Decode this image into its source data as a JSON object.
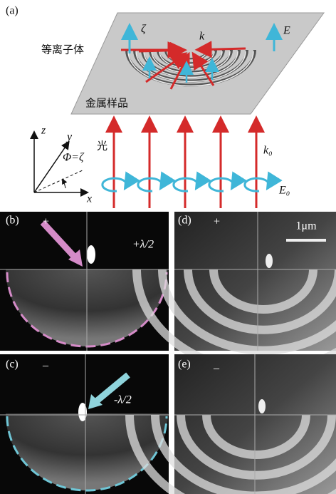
{
  "panels": {
    "a": {
      "label": "(a)",
      "plasma_label": "等离子体",
      "sample_label": "金属样品",
      "zeta": "ζ",
      "k": "k",
      "E": "E",
      "light": "光",
      "k0": "k₀",
      "E0": "E₀",
      "axes": {
        "z": "z",
        "y": "y",
        "x": "x",
        "phi": "Φ=ζ"
      }
    },
    "b": {
      "label": "(b)",
      "sign": "+",
      "phase": "+λ/2"
    },
    "c": {
      "label": "(c)",
      "sign": "–",
      "phase": "-λ/2"
    },
    "d": {
      "label": "(d)",
      "sign": "+",
      "scale_bar": "1μm"
    },
    "e": {
      "label": "(e)",
      "sign": "–"
    }
  }
}
